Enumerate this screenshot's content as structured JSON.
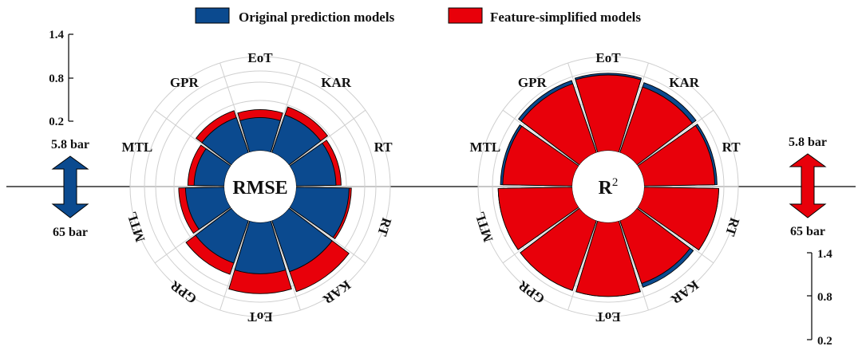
{
  "legend": {
    "original": "Original prediction models",
    "simplified": "Feature-simplified models"
  },
  "colors": {
    "original": "#0b4a8f",
    "simplified": "#e8000a",
    "grid": "#cfcfcf",
    "axis": "#000000"
  },
  "pressure": {
    "low": "5.8 bar",
    "high": "65 bar"
  },
  "scale_ticks": [
    "1.4",
    "0.8",
    "0.2"
  ],
  "chart_data": [
    {
      "type": "radial-bar",
      "title": "RMSE",
      "ylim": [
        0,
        1.4
      ],
      "series": [
        {
          "name": "Original prediction models",
          "points": [
            {
              "pressure": "5.8 bar",
              "model": "EoT",
              "value": 0.58
            },
            {
              "pressure": "5.8 bar",
              "model": "KAR",
              "value": 0.7
            },
            {
              "pressure": "5.8 bar",
              "model": "RT",
              "value": 0.7
            },
            {
              "pressure": "5.8 bar",
              "model": "MTL",
              "value": 0.53
            },
            {
              "pressure": "5.8 bar",
              "model": "GPR",
              "value": 0.65
            },
            {
              "pressure": "65 bar",
              "model": "RT",
              "value": 0.93
            },
            {
              "pressure": "65 bar",
              "model": "KAR",
              "value": 0.95
            },
            {
              "pressure": "65 bar",
              "model": "EoT",
              "value": 0.9
            },
            {
              "pressure": "65 bar",
              "model": "GPR",
              "value": 0.79
            },
            {
              "pressure": "65 bar",
              "model": "MTL",
              "value": 0.68
            }
          ]
        },
        {
          "name": "Feature-simplified models",
          "points": [
            {
              "pressure": "5.8 bar",
              "model": "EoT",
              "value": 0.72
            },
            {
              "pressure": "5.8 bar",
              "model": "KAR",
              "value": 0.85
            },
            {
              "pressure": "5.8 bar",
              "model": "RT",
              "value": 0.79
            },
            {
              "pressure": "5.8 bar",
              "model": "MTL",
              "value": 0.64
            },
            {
              "pressure": "5.8 bar",
              "model": "GPR",
              "value": 0.78
            },
            {
              "pressure": "65 bar",
              "model": "RT",
              "value": 0.97
            },
            {
              "pressure": "65 bar",
              "model": "KAR",
              "value": 1.32
            },
            {
              "pressure": "65 bar",
              "model": "EoT",
              "value": 1.25
            },
            {
              "pressure": "65 bar",
              "model": "GPR",
              "value": 1.0
            },
            {
              "pressure": "65 bar",
              "model": "MTL",
              "value": 0.8
            }
          ]
        }
      ],
      "category_labels_top": [
        "EoT",
        "KAR",
        "RT",
        "MTL",
        "GPR"
      ],
      "category_labels_bottom": [
        "RT",
        "KAR",
        "EoT",
        "GPR",
        "MTL"
      ]
    },
    {
      "type": "radial-bar",
      "title": "R",
      "title_superscript": "2",
      "ylim": [
        0,
        1.4
      ],
      "series": [
        {
          "name": "Original prediction models",
          "points": [
            {
              "pressure": "5.8 bar",
              "model": "EoT",
              "value": 1.36
            },
            {
              "pressure": "5.8 bar",
              "model": "KAR",
              "value": 1.3
            },
            {
              "pressure": "5.8 bar",
              "model": "RT",
              "value": 1.28
            },
            {
              "pressure": "5.8 bar",
              "model": "MTL",
              "value": 1.26
            },
            {
              "pressure": "5.8 bar",
              "model": "GPR",
              "value": 1.34
            },
            {
              "pressure": "65 bar",
              "model": "RT",
              "value": 1.31
            },
            {
              "pressure": "65 bar",
              "model": "KAR",
              "value": 1.24
            },
            {
              "pressure": "65 bar",
              "model": "EoT",
              "value": 1.3
            },
            {
              "pressure": "65 bar",
              "model": "GPR",
              "value": 1.3
            },
            {
              "pressure": "65 bar",
              "model": "MTL",
              "value": 1.3
            }
          ]
        },
        {
          "name": "Feature-simplified models",
          "points": [
            {
              "pressure": "5.8 bar",
              "model": "EoT",
              "value": 1.33
            },
            {
              "pressure": "5.8 bar",
              "model": "KAR",
              "value": 1.22
            },
            {
              "pressure": "5.8 bar",
              "model": "RT",
              "value": 1.24
            },
            {
              "pressure": "5.8 bar",
              "model": "MTL",
              "value": 1.22
            },
            {
              "pressure": "5.8 bar",
              "model": "GPR",
              "value": 1.28
            },
            {
              "pressure": "65 bar",
              "model": "RT",
              "value": 1.31
            },
            {
              "pressure": "65 bar",
              "model": "KAR",
              "value": 1.17
            },
            {
              "pressure": "65 bar",
              "model": "EoT",
              "value": 1.3
            },
            {
              "pressure": "65 bar",
              "model": "GPR",
              "value": 1.3
            },
            {
              "pressure": "65 bar",
              "model": "MTL",
              "value": 1.3
            }
          ]
        }
      ],
      "category_labels_top": [
        "EoT",
        "KAR",
        "RT",
        "MTL",
        "GPR"
      ],
      "category_labels_bottom": [
        "RT",
        "KAR",
        "EoT",
        "GPR",
        "MTL"
      ]
    }
  ]
}
